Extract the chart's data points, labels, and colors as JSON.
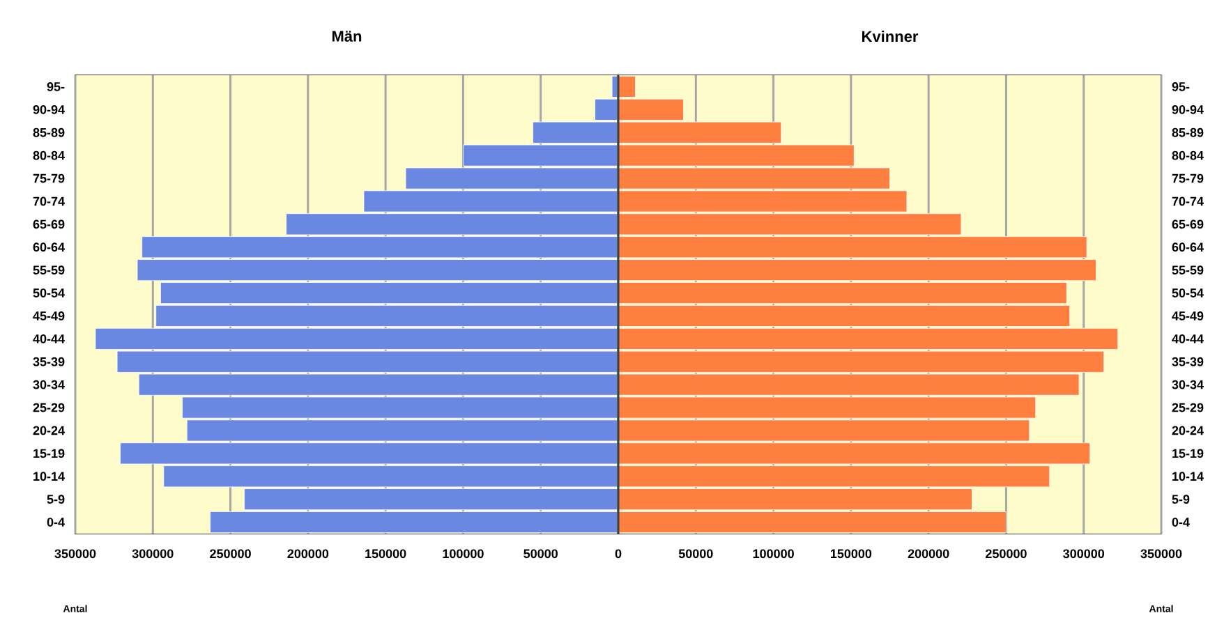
{
  "chart_data": [
    {
      "type": "bar",
      "orientation": "horizontal",
      "categories": [
        "95-",
        "90-94",
        "85-89",
        "80-84",
        "75-79",
        "70-74",
        "65-69",
        "60-64",
        "55-59",
        "50-54",
        "45-49",
        "40-44",
        "35-39",
        "30-34",
        "25-29",
        "20-24",
        "15-19",
        "10-14",
        "5-9",
        "0-4"
      ],
      "series": [
        {
          "name": "Män",
          "color": "#6a88e2",
          "values": [
            4000,
            15000,
            55000,
            100000,
            137000,
            164000,
            214000,
            307000,
            310000,
            295000,
            298000,
            337000,
            323000,
            309000,
            281000,
            278000,
            321000,
            293000,
            241000,
            263000
          ]
        }
      ],
      "xlim": [
        350000,
        0
      ],
      "xticks": [
        350000,
        300000,
        250000,
        200000,
        150000,
        100000,
        50000
      ],
      "bands": [
        {
          "axis": "x",
          "from": 0,
          "to": 350000,
          "color": "#fffccc"
        }
      ],
      "grid": "x",
      "annotations": [
        "Antal"
      ]
    },
    {
      "type": "bar",
      "orientation": "horizontal",
      "categories": [
        "95-",
        "90-94",
        "85-89",
        "80-84",
        "75-79",
        "70-74",
        "65-69",
        "60-64",
        "55-59",
        "50-54",
        "45-49",
        "40-44",
        "35-39",
        "30-34",
        "25-29",
        "20-24",
        "15-19",
        "10-14",
        "5-9",
        "0-4"
      ],
      "series": [
        {
          "name": "Kvinner",
          "color": "#ff7f40",
          "values": [
            11000,
            42000,
            105000,
            152000,
            175000,
            186000,
            221000,
            302000,
            308000,
            289000,
            291000,
            322000,
            313000,
            297000,
            269000,
            265000,
            304000,
            278000,
            228000,
            250000
          ]
        }
      ],
      "xlim": [
        0,
        350000
      ],
      "xticks": [
        0,
        50000,
        100000,
        150000,
        200000,
        250000,
        300000,
        350000
      ],
      "bands": [
        {
          "axis": "x",
          "from": 0,
          "to": 350000,
          "color": "#fffccc"
        }
      ],
      "grid": "x",
      "annotations": [
        "Antal"
      ]
    }
  ]
}
